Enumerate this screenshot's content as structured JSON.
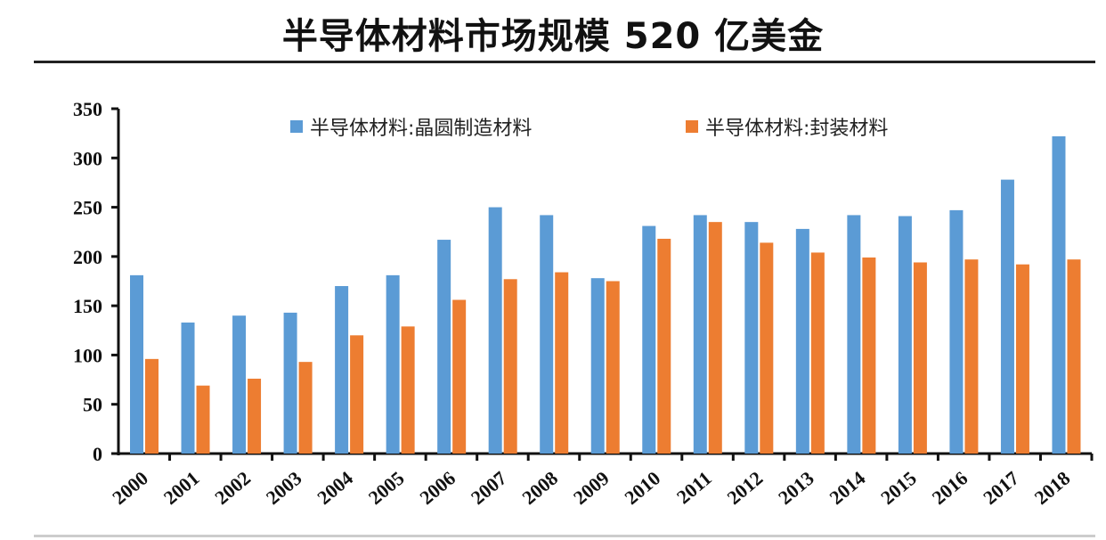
{
  "title": "半导体材料市场规模 520 亿美金",
  "chart_data": {
    "type": "bar",
    "title": "半导体材料市场规模 520 亿美金",
    "categories": [
      "2000",
      "2001",
      "2002",
      "2003",
      "2004",
      "2005",
      "2006",
      "2007",
      "2008",
      "2009",
      "2010",
      "2011",
      "2012",
      "2013",
      "2014",
      "2015",
      "2016",
      "2017",
      "2018"
    ],
    "series": [
      {
        "name": "半导体材料:晶圆制造材料",
        "color": "#5b9bd5",
        "values": [
          181,
          133,
          140,
          143,
          170,
          181,
          217,
          250,
          242,
          178,
          231,
          242,
          235,
          228,
          242,
          241,
          247,
          278,
          322
        ]
      },
      {
        "name": "半导体材料:封装材料",
        "color": "#ed7d31",
        "values": [
          96,
          69,
          76,
          93,
          120,
          129,
          156,
          177,
          184,
          175,
          218,
          235,
          214,
          204,
          199,
          194,
          197,
          192,
          197
        ]
      }
    ],
    "ylim": [
      0,
      350
    ],
    "yticks": [
      0,
      50,
      100,
      150,
      200,
      250,
      300,
      350
    ],
    "grid": false,
    "legend": "top"
  }
}
